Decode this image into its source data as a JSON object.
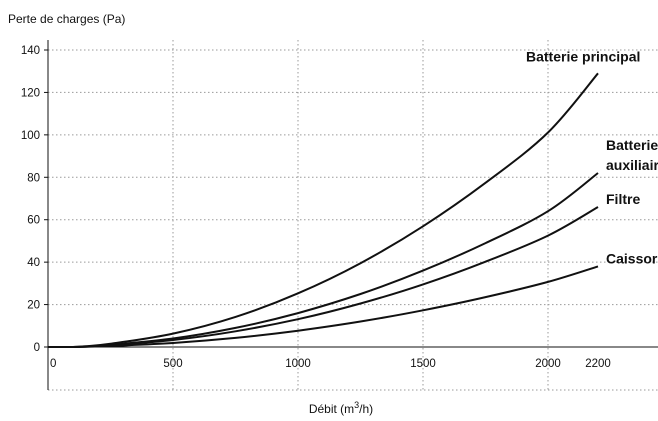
{
  "chart_data": {
    "type": "line",
    "ylabel": "Perte de charges (Pa)",
    "xlabel_prefix": "Débit (m",
    "xlabel_sup": "3",
    "xlabel_suffix": "/h)",
    "xlim": [
      0,
      2200
    ],
    "ylim": [
      0,
      140
    ],
    "x_ticks": [
      0,
      500,
      1000,
      1500,
      2000,
      2200
    ],
    "x_tick_labels": [
      "0",
      "500",
      "1000",
      "1500",
      "2000",
      "2200"
    ],
    "y_ticks": [
      0,
      20,
      40,
      60,
      80,
      100,
      120,
      140
    ],
    "y_tick_labels": [
      "0",
      "20",
      "40",
      "60",
      "80",
      "100",
      "120",
      "140"
    ],
    "grid": true,
    "x": [
      0,
      100,
      150,
      250,
      500,
      750,
      1000,
      1250,
      1500,
      1750,
      2000,
      2200
    ],
    "series": [
      {
        "name": "Batterie principal",
        "label_lines": [
          "Batterie principal"
        ],
        "values": [
          0,
          0,
          0.4,
          1.5,
          6.3,
          14.2,
          25.3,
          39.5,
          56.9,
          77.4,
          101.1,
          129
        ]
      },
      {
        "name": "Batterie auxiliair",
        "label_lines": [
          "Batterie",
          "auxiliair"
        ],
        "values": [
          0,
          0,
          0.2,
          1.0,
          4.0,
          9.0,
          16.0,
          25.0,
          36.0,
          49.0,
          64.0,
          82
        ]
      },
      {
        "name": "Filtre",
        "label_lines": [
          "Filtre"
        ],
        "values": [
          0,
          0,
          0.2,
          0.8,
          3.3,
          7.4,
          13.1,
          20.5,
          29.5,
          40.2,
          52.5,
          66
        ]
      },
      {
        "name": "Caissor",
        "label_lines": [
          "Caissor"
        ],
        "values": [
          0,
          0,
          0.1,
          0.5,
          1.9,
          4.3,
          7.7,
          12.0,
          17.3,
          23.5,
          30.7,
          38
        ]
      }
    ]
  }
}
